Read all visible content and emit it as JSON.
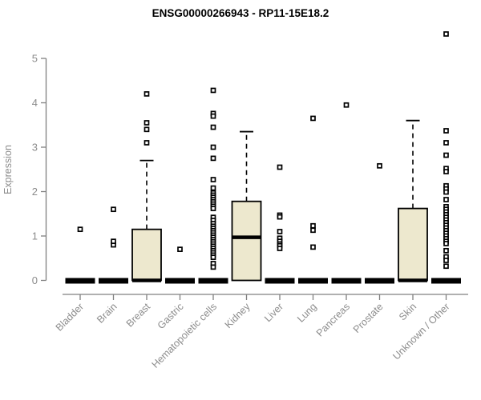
{
  "page": {
    "background": "#ffffff"
  },
  "chart_data": {
    "type": "boxplot",
    "title": "ENSG00000266943 - RP11-15E18.2",
    "ylabel": "Expression",
    "xlabel": "",
    "ylim": [
      0,
      5.6
    ],
    "yticks": [
      0,
      1,
      2,
      3,
      4,
      5
    ],
    "grid": false,
    "legend": null,
    "colors": {
      "box_fill": "#ede8ce",
      "box_stroke": "#000000",
      "median": "#000000",
      "outlier_stroke": "#000000",
      "outlier_fill": "#ffffff",
      "axis": "#808080",
      "tick_label": "#8c8c8c",
      "title": "#000000"
    },
    "categories": [
      "Bladder",
      "Brain",
      "Breast",
      "Gastric",
      "Hematopoietic cells",
      "Kidney",
      "Liver",
      "Lung",
      "Pancreas",
      "Prostate",
      "Skin",
      "Unknown / Other"
    ],
    "series": [
      {
        "label": "Bladder",
        "q1": 0,
        "median": 0,
        "q3": 0,
        "whisker_low": 0,
        "whisker_high": 0,
        "outliers": [
          1.15
        ]
      },
      {
        "label": "Brain",
        "q1": 0,
        "median": 0,
        "q3": 0,
        "whisker_low": 0,
        "whisker_high": 0,
        "outliers": [
          0.8,
          0.88,
          1.6
        ]
      },
      {
        "label": "Breast",
        "q1": 0,
        "median": 0,
        "q3": 1.15,
        "whisker_low": 0,
        "whisker_high": 2.7,
        "outliers": [
          3.1,
          3.4,
          3.55,
          4.2
        ]
      },
      {
        "label": "Gastric",
        "q1": 0,
        "median": 0,
        "q3": 0,
        "whisker_low": 0,
        "whisker_high": 0,
        "outliers": [
          0.7
        ]
      },
      {
        "label": "Hematopoietic cells",
        "q1": 0,
        "median": 0,
        "q3": 0,
        "whisker_low": 0,
        "whisker_high": 0,
        "outliers": [
          4.28,
          3.76,
          3.7,
          3.45,
          3.0,
          2.75,
          2.27,
          2.08,
          1.97,
          1.92,
          1.87,
          1.82,
          1.77,
          1.72,
          1.67,
          1.62,
          1.42,
          1.35,
          1.28,
          1.22,
          1.17,
          1.12,
          1.07,
          1.02,
          0.97,
          0.92,
          0.87,
          0.82,
          0.77,
          0.72,
          0.67,
          0.62,
          0.57,
          0.52,
          0.38,
          0.3
        ]
      },
      {
        "label": "Kidney",
        "q1": 0,
        "median": 0.97,
        "q3": 1.78,
        "whisker_low": 0,
        "whisker_high": 3.35,
        "outliers": []
      },
      {
        "label": "Liver",
        "q1": 0,
        "median": 0,
        "q3": 0,
        "whisker_low": 0,
        "whisker_high": 0,
        "outliers": [
          2.55,
          1.47,
          1.43,
          1.1,
          0.95,
          0.88,
          0.82,
          0.78,
          0.72
        ]
      },
      {
        "label": "Lung",
        "q1": 0,
        "median": 0,
        "q3": 0,
        "whisker_low": 0,
        "whisker_high": 0,
        "outliers": [
          3.65,
          1.23,
          1.13,
          0.75
        ]
      },
      {
        "label": "Pancreas",
        "q1": 0,
        "median": 0,
        "q3": 0,
        "whisker_low": 0,
        "whisker_high": 0,
        "outliers": [
          3.95
        ]
      },
      {
        "label": "Prostate",
        "q1": 0,
        "median": 0,
        "q3": 0,
        "whisker_low": 0,
        "whisker_high": 0,
        "outliers": [
          2.58
        ]
      },
      {
        "label": "Skin",
        "q1": 0,
        "median": 0,
        "q3": 1.62,
        "whisker_low": 0,
        "whisker_high": 3.6,
        "outliers": []
      },
      {
        "label": "Unknown / Other",
        "q1": 0,
        "median": 0,
        "q3": 0,
        "whisker_low": 0,
        "whisker_high": 0,
        "outliers": [
          5.55,
          3.37,
          3.1,
          2.82,
          2.52,
          2.45,
          2.13,
          2.06,
          1.99,
          1.82,
          1.66,
          1.6,
          1.54,
          1.48,
          1.42,
          1.36,
          1.3,
          1.24,
          1.18,
          1.12,
          1.06,
          1.0,
          0.94,
          0.88,
          0.83,
          0.67,
          0.53,
          0.45,
          0.32
        ]
      }
    ]
  }
}
